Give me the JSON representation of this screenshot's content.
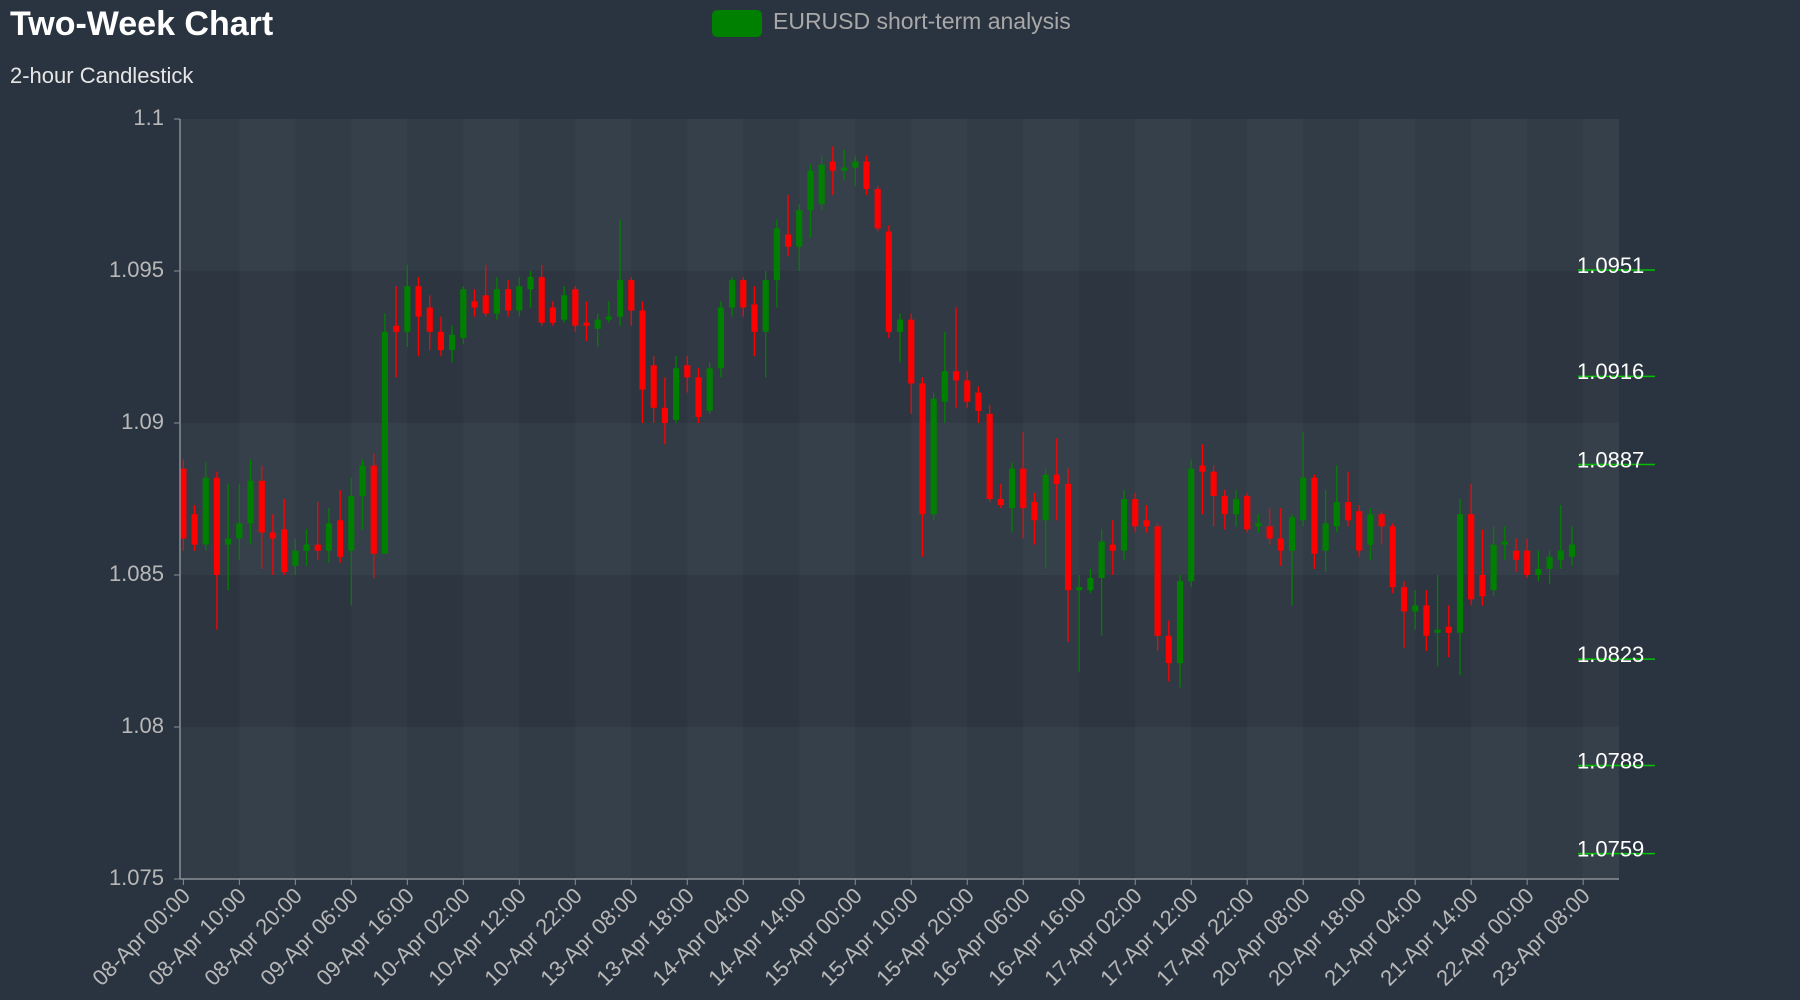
{
  "chart_data": {
    "type": "candlestick",
    "title": "Two-Week Chart",
    "subtitle": "2-hour Candlestick",
    "legend": "top",
    "series": [
      {
        "name": "EURUSD short-term analysis",
        "color": "#008000",
        "up_color": "#008000",
        "down_color": "#ff0000",
        "open": [
          1.0885,
          1.087,
          1.086,
          1.0882,
          1.086,
          1.0862,
          1.0867,
          1.0881,
          1.0864,
          1.0865,
          1.0853,
          1.0858,
          1.086,
          1.0858,
          1.0868,
          1.0858,
          1.0876,
          1.0886,
          1.0857,
          1.0932,
          1.093,
          1.0945,
          1.0938,
          1.093,
          1.0924,
          1.0928,
          1.094,
          1.0942,
          1.0936,
          1.0944,
          1.0937,
          1.0944,
          1.0948,
          1.0938,
          1.0934,
          1.0944,
          1.0933,
          1.0931,
          1.0934,
          1.0935,
          1.0947,
          1.0937,
          1.0919,
          1.0905,
          1.0901,
          1.0919,
          1.0915,
          1.0904,
          1.0918,
          1.0938,
          1.0947,
          1.0939,
          1.093,
          1.0947,
          1.0962,
          1.0958,
          1.097,
          1.0972,
          1.0986,
          1.0983,
          1.0984,
          1.0986,
          1.0977,
          1.0963,
          1.093,
          1.0934,
          1.0913,
          1.087,
          1.0907,
          1.0917,
          1.0914,
          1.091,
          1.0903,
          1.0875,
          1.0872,
          1.0885,
          1.0874,
          1.0868,
          1.0883,
          1.088,
          1.0845,
          1.0845,
          1.0849,
          1.086,
          1.0858,
          1.0875,
          1.0868,
          1.0866,
          1.083,
          1.0821,
          1.0848,
          1.0886,
          1.0884,
          1.0876,
          1.087,
          1.0876,
          1.0866,
          1.0866,
          1.0862,
          1.0858,
          1.0868,
          1.0882,
          1.0858,
          1.0866,
          1.0874,
          1.0871,
          1.086,
          1.087,
          1.0866,
          1.0846,
          1.0838,
          1.084,
          1.0831,
          1.0833,
          1.0831,
          1.087,
          1.085,
          1.0845,
          1.086,
          1.0858,
          1.0858,
          1.085,
          1.0852,
          1.0855,
          1.0856
        ],
        "high": [
          1.0888,
          1.0873,
          1.0887,
          1.0884,
          1.088,
          1.088,
          1.0888,
          1.0886,
          1.087,
          1.0875,
          1.0862,
          1.0865,
          1.0874,
          1.0872,
          1.0878,
          1.0882,
          1.0888,
          1.089,
          1.0936,
          1.0945,
          1.0952,
          1.0948,
          1.0942,
          1.0935,
          1.0932,
          1.0945,
          1.0944,
          1.0952,
          1.0948,
          1.0947,
          1.0948,
          1.095,
          1.0952,
          1.094,
          1.0945,
          1.0945,
          1.094,
          1.0936,
          1.094,
          1.0967,
          1.0948,
          1.094,
          1.0922,
          1.0915,
          1.0922,
          1.0922,
          1.0918,
          1.092,
          1.094,
          1.0948,
          1.0948,
          1.0945,
          1.095,
          1.0967,
          1.0975,
          1.0972,
          1.0985,
          1.0988,
          1.0991,
          1.099,
          1.0988,
          1.0988,
          1.0978,
          1.0965,
          1.0936,
          1.0936,
          1.0915,
          1.091,
          1.093,
          1.0938,
          1.0917,
          1.0912,
          1.0906,
          1.088,
          1.0887,
          1.0897,
          1.0877,
          1.0885,
          1.0895,
          1.0885,
          1.085,
          1.0852,
          1.0865,
          1.0868,
          1.0878,
          1.0877,
          1.0873,
          1.0867,
          1.0835,
          1.085,
          1.0888,
          1.0893,
          1.0886,
          1.0878,
          1.0878,
          1.0877,
          1.087,
          1.0872,
          1.0872,
          1.087,
          1.0897,
          1.0883,
          1.0878,
          1.0886,
          1.0884,
          1.0873,
          1.0872,
          1.0871,
          1.0867,
          1.0848,
          1.0845,
          1.0845,
          1.085,
          1.084,
          1.0875,
          1.088,
          1.0865,
          1.0866,
          1.0866,
          1.0862,
          1.0862,
          1.0858,
          1.0858,
          1.0873,
          1.0866
        ],
        "low": [
          1.0858,
          1.0858,
          1.0858,
          1.0832,
          1.0845,
          1.0855,
          1.086,
          1.0852,
          1.085,
          1.085,
          1.085,
          1.0853,
          1.0855,
          1.0854,
          1.0854,
          1.084,
          1.0865,
          1.0849,
          1.0857,
          1.0915,
          1.0925,
          1.0922,
          1.0924,
          1.0922,
          1.092,
          1.0926,
          1.0935,
          1.0935,
          1.0934,
          1.0935,
          1.0935,
          1.0938,
          1.0932,
          1.0932,
          1.0933,
          1.093,
          1.0927,
          1.0925,
          1.0933,
          1.0932,
          1.0932,
          1.09,
          1.09,
          1.0893,
          1.09,
          1.091,
          1.09,
          1.0903,
          1.0915,
          1.0935,
          1.0935,
          1.0922,
          1.0915,
          1.0938,
          1.0955,
          1.095,
          1.0961,
          1.097,
          1.0975,
          1.098,
          1.0978,
          1.0975,
          1.0963,
          1.0928,
          1.092,
          1.0903,
          1.0856,
          1.0868,
          1.09,
          1.0905,
          1.0905,
          1.09,
          1.0874,
          1.0872,
          1.0864,
          1.0862,
          1.086,
          1.0852,
          1.0868,
          1.0828,
          1.0818,
          1.0844,
          1.083,
          1.085,
          1.0855,
          1.0864,
          1.0864,
          1.0825,
          1.0815,
          1.0813,
          1.0846,
          1.087,
          1.0866,
          1.0865,
          1.0866,
          1.0864,
          1.0864,
          1.086,
          1.0853,
          1.084,
          1.0866,
          1.0852,
          1.0851,
          1.0864,
          1.0866,
          1.0856,
          1.0855,
          1.086,
          1.0844,
          1.0826,
          1.0832,
          1.0825,
          1.082,
          1.0823,
          1.0817,
          1.084,
          1.084,
          1.0843,
          1.0855,
          1.0851,
          1.0849,
          1.0848,
          1.0847,
          1.0852,
          1.0853
        ],
        "close": [
          1.0862,
          1.086,
          1.0882,
          1.085,
          1.0862,
          1.0867,
          1.0881,
          1.0864,
          1.0862,
          1.0851,
          1.0858,
          1.086,
          1.0858,
          1.0867,
          1.0856,
          1.0876,
          1.0886,
          1.0857,
          1.093,
          1.093,
          1.0945,
          1.0935,
          1.093,
          1.0924,
          1.0929,
          1.0944,
          1.0938,
          1.0936,
          1.0944,
          1.0937,
          1.0945,
          1.0948,
          1.0933,
          1.0933,
          1.0942,
          1.0932,
          1.0932,
          1.0934,
          1.0935,
          1.0947,
          1.0937,
          1.0911,
          1.0905,
          1.09,
          1.0918,
          1.0915,
          1.0902,
          1.0918,
          1.0938,
          1.0947,
          1.0938,
          1.093,
          1.0947,
          1.0964,
          1.0958,
          1.097,
          1.0983,
          1.0985,
          1.0983,
          1.0984,
          1.0986,
          1.0977,
          1.0964,
          1.093,
          1.0934,
          1.0913,
          1.087,
          1.0908,
          1.0917,
          1.0914,
          1.0907,
          1.0904,
          1.0875,
          1.0873,
          1.0885,
          1.0872,
          1.0868,
          1.0883,
          1.088,
          1.0845,
          1.0846,
          1.0849,
          1.0861,
          1.0858,
          1.0875,
          1.0866,
          1.0866,
          1.083,
          1.0821,
          1.0848,
          1.0885,
          1.0884,
          1.0876,
          1.087,
          1.0875,
          1.0865,
          1.0867,
          1.0862,
          1.0858,
          1.0869,
          1.0882,
          1.0857,
          1.0867,
          1.0874,
          1.0868,
          1.0858,
          1.087,
          1.0866,
          1.0846,
          1.0838,
          1.084,
          1.083,
          1.0832,
          1.0831,
          1.087,
          1.0842,
          1.0843,
          1.086,
          1.0861,
          1.0855,
          1.085,
          1.0852,
          1.0856,
          1.0858,
          1.086
        ]
      }
    ],
    "xlim": [
      -0.3,
      128.2
    ],
    "xticks": [
      {
        "value": 0,
        "label": "08-Apr 00:00"
      },
      {
        "value": 5,
        "label": "08-Apr 10:00"
      },
      {
        "value": 10,
        "label": "08-Apr 20:00"
      },
      {
        "value": 15,
        "label": "09-Apr 06:00"
      },
      {
        "value": 20,
        "label": "09-Apr 16:00"
      },
      {
        "value": 25,
        "label": "10-Apr 02:00"
      },
      {
        "value": 30,
        "label": "10-Apr 12:00"
      },
      {
        "value": 35,
        "label": "10-Apr 22:00"
      },
      {
        "value": 40,
        "label": "13-Apr 08:00"
      },
      {
        "value": 45,
        "label": "13-Apr 18:00"
      },
      {
        "value": 50,
        "label": "14-Apr 04:00"
      },
      {
        "value": 55,
        "label": "14-Apr 14:00"
      },
      {
        "value": 60,
        "label": "15-Apr 00:00"
      },
      {
        "value": 65,
        "label": "15-Apr 10:00"
      },
      {
        "value": 70,
        "label": "15-Apr 20:00"
      },
      {
        "value": 75,
        "label": "16-Apr 06:00"
      },
      {
        "value": 80,
        "label": "16-Apr 16:00"
      },
      {
        "value": 85,
        "label": "17-Apr 02:00"
      },
      {
        "value": 90,
        "label": "17-Apr 12:00"
      },
      {
        "value": 95,
        "label": "17-Apr 22:00"
      },
      {
        "value": 100,
        "label": "20-Apr 08:00"
      },
      {
        "value": 105,
        "label": "20-Apr 18:00"
      },
      {
        "value": 110,
        "label": "21-Apr 04:00"
      },
      {
        "value": 115,
        "label": "21-Apr 14:00"
      },
      {
        "value": 120,
        "label": "22-Apr 00:00"
      },
      {
        "value": 125,
        "label": "23-Apr 08:00"
      }
    ],
    "ylim": [
      1.075,
      1.1
    ],
    "yticks": [
      1.075,
      1.08,
      1.085,
      1.09,
      1.095,
      1.1
    ],
    "levels": [
      1.0951,
      1.0916,
      1.0887,
      1.0823,
      1.0788,
      1.0759
    ],
    "level_color": "#00c000"
  }
}
